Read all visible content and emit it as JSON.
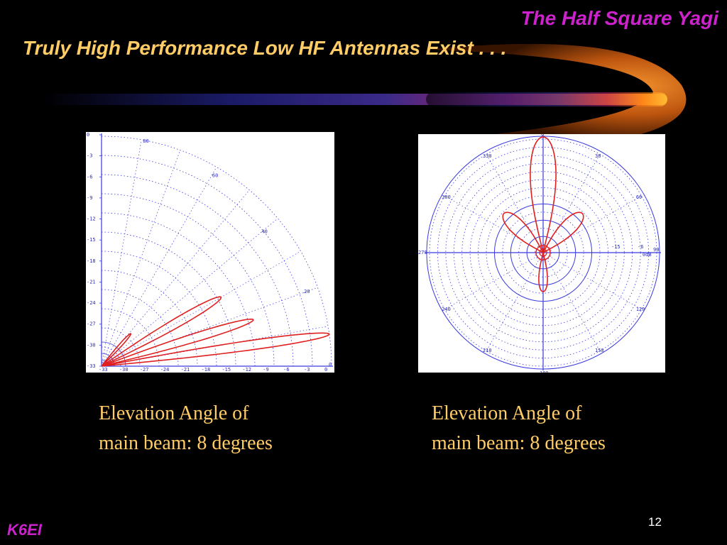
{
  "header": {
    "title": "The Half Square Yagi"
  },
  "slide": {
    "title": "Truly High Performance Low HF Antennas Exist . . ."
  },
  "colors": {
    "accent_title": "#cc22cc",
    "subtitle": "#ffcc66",
    "pattern": "#e02020",
    "grid": "#3a3ae0"
  },
  "plots": {
    "elevation": {
      "y_ticks": [
        "0",
        "-3",
        "-6",
        "-9",
        "-12",
        "-15",
        "-18",
        "-21",
        "-24",
        "-27",
        "-30",
        "-33"
      ],
      "x_ticks": [
        "-33",
        "-30",
        "-27",
        "-24",
        "-21",
        "-18",
        "-15",
        "-12",
        "-9",
        "-6",
        "-3",
        "0"
      ],
      "angle_labels": [
        "80",
        "60",
        "40",
        "20",
        "0"
      ]
    },
    "azimuth": {
      "angle_labels": [
        "0",
        "30",
        "60",
        "90",
        "120",
        "150",
        "180",
        "210",
        "240",
        "270",
        "300",
        "330"
      ],
      "radial_labels": [
        "-15",
        "-6",
        "0dB"
      ]
    }
  },
  "captions": {
    "left": {
      "line1": "Elevation Angle of",
      "line2": "main beam: 8 degrees"
    },
    "right": {
      "line1": "Elevation Angle of",
      "line2": "main beam: 8 degrees"
    }
  },
  "footer": {
    "label": "K6EI",
    "page_number": "12"
  }
}
